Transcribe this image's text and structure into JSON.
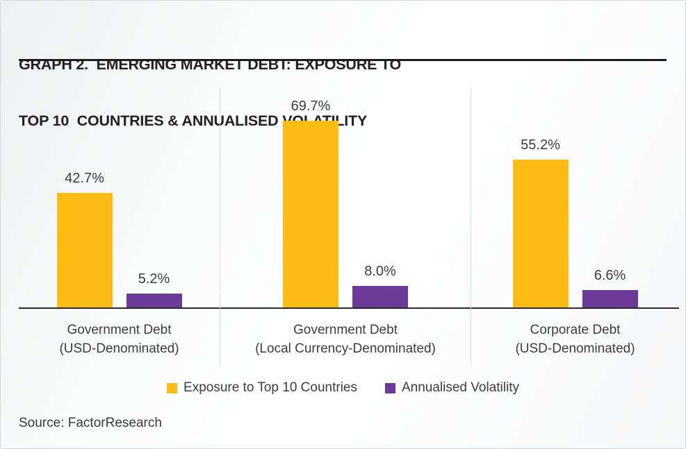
{
  "title": {
    "line1": "GRAPH 2.  EMERGING MARKET DEBT: EXPOSURE TO",
    "line2": "TOP 10  COUNTRIES & ANNUALISED VOLATILITY"
  },
  "source": "Source: FactorResearch",
  "colors": {
    "exposure_bar": "#fbbd13",
    "volatility_bar": "#6c3b97",
    "axis_line": "#2a2a2a",
    "divider_line": "#dcdcdc",
    "title_text": "#242021",
    "label_text": "#3d3b3c"
  },
  "chart_data": {
    "type": "bar",
    "title": "GRAPH 2. EMERGING MARKET DEBT: EXPOSURE TO TOP 10 COUNTRIES & ANNUALISED VOLATILITY",
    "categories": [
      {
        "line1": "Government Debt",
        "line2": "(USD-Denominated)"
      },
      {
        "line1": "Government Debt",
        "line2": "(Local Currency-Denominated)"
      },
      {
        "line1": "Corporate Debt",
        "line2": "(USD-Denominated)"
      }
    ],
    "series": [
      {
        "name": "Exposure to Top 10 Countries",
        "color": "#fbbd13",
        "values": [
          42.7,
          69.7,
          55.2
        ],
        "labels": [
          "42.7%",
          "69.7%",
          "55.2%"
        ]
      },
      {
        "name": "Annualised Volatility",
        "color": "#6c3b97",
        "values": [
          5.2,
          8.0,
          6.6
        ],
        "labels": [
          "5.2%",
          "8.0%",
          "6.6%"
        ]
      }
    ],
    "unit": "%",
    "ylim": [
      0,
      83
    ],
    "grid": false,
    "value_labels": true,
    "legend_position": "bottom",
    "source": "Source: FactorResearch"
  }
}
